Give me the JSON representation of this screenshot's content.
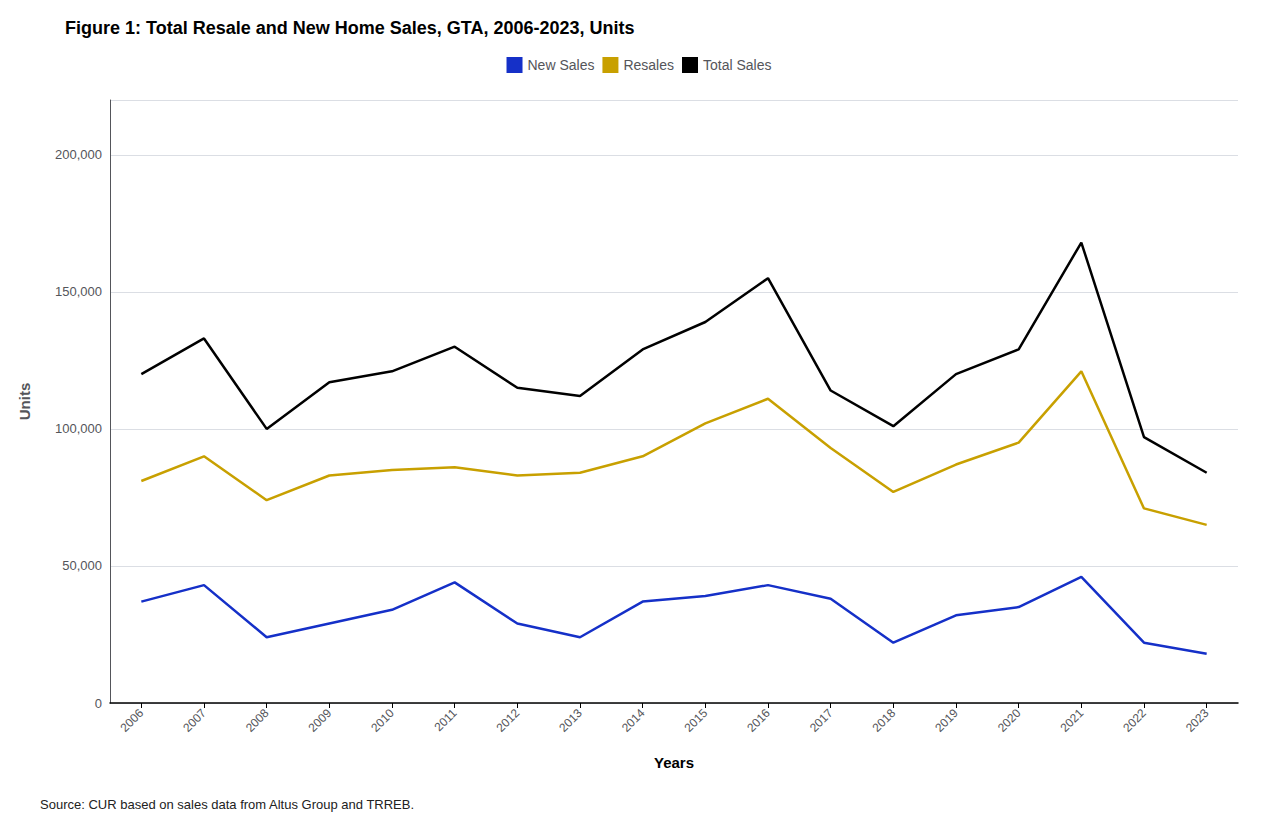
{
  "chart_data": {
    "type": "line",
    "title": "Figure 1: Total Resale and New Home Sales, GTA, 2006-2023, Units",
    "xlabel": "Years",
    "ylabel": "Units",
    "annotations": [
      "Source: CUR based on sales data from Altus Group and TRREB."
    ],
    "x": [
      2006,
      2007,
      2008,
      2009,
      2010,
      2011,
      2012,
      2013,
      2014,
      2015,
      2016,
      2017,
      2018,
      2019,
      2020,
      2021,
      2022,
      2023
    ],
    "series": [
      {
        "name": "New Sales",
        "color": "#1530C8",
        "values": [
          37000,
          43000,
          24000,
          29000,
          34000,
          44000,
          29000,
          24000,
          37000,
          39000,
          43000,
          38000,
          22000,
          32000,
          35000,
          46000,
          22000,
          18000
        ]
      },
      {
        "name": "Resales",
        "color": "#C8A000",
        "values": [
          81000,
          90000,
          74000,
          83000,
          85000,
          86000,
          83000,
          84000,
          90000,
          102000,
          111000,
          93000,
          77000,
          87000,
          95000,
          121000,
          71000,
          65000
        ]
      },
      {
        "name": "Total Sales",
        "color": "#000000",
        "values": [
          120000,
          133000,
          100000,
          117000,
          121000,
          130000,
          115000,
          112000,
          129000,
          139000,
          155000,
          114000,
          101000,
          120000,
          129000,
          168000,
          97000,
          84000
        ]
      }
    ],
    "xlim": [
      2005.5,
      2023.5
    ],
    "xticks": [
      2006,
      2007,
      2008,
      2009,
      2010,
      2011,
      2012,
      2013,
      2014,
      2015,
      2016,
      2017,
      2018,
      2019,
      2020,
      2021,
      2022,
      2023
    ],
    "ylim": [
      0,
      220000
    ],
    "yticks": [
      0,
      {
        "value": 50000,
        "label": "50,000"
      },
      {
        "value": 100000,
        "label": "100,000"
      },
      {
        "value": 150000,
        "label": "150,000"
      },
      {
        "value": 200000,
        "label": "200,000"
      }
    ],
    "grid": true,
    "legend": "top"
  }
}
